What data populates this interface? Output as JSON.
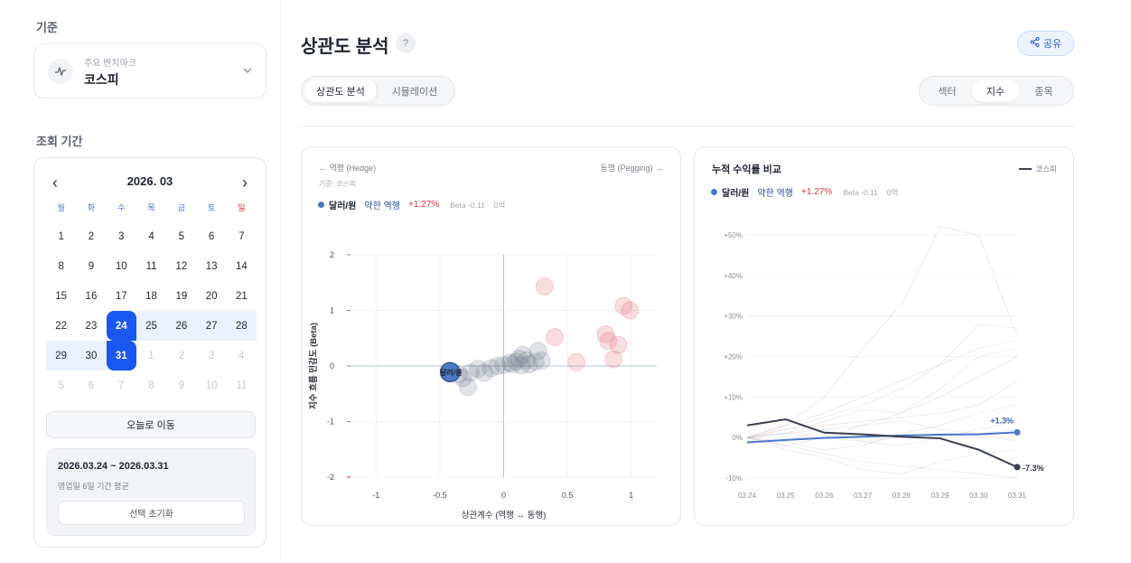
{
  "sidebar": {
    "benchmark_section": "기준",
    "benchmark": {
      "sub": "주요 벤치마크",
      "value": "코스피"
    },
    "period_section": "조회 기간",
    "calendar": {
      "month": "2026. 03",
      "dow": [
        "월",
        "화",
        "수",
        "목",
        "금",
        "토",
        "일"
      ],
      "weeks": [
        [
          "1",
          "2",
          "3",
          "4",
          "5",
          "6",
          "7"
        ],
        [
          "8",
          "9",
          "10",
          "11",
          "12",
          "13",
          "14"
        ],
        [
          "15",
          "16",
          "17",
          "18",
          "19",
          "20",
          "21"
        ],
        [
          "22",
          "23",
          "24",
          "25",
          "26",
          "27",
          "28"
        ],
        [
          "29",
          "30",
          "31",
          "1",
          "2",
          "3",
          "4"
        ],
        [
          "5",
          "6",
          "7",
          "8",
          "9",
          "10",
          "11"
        ]
      ],
      "today_button": "오늘로 이동"
    },
    "range": {
      "text": "2026.03.24 ~ 2026.03.31",
      "sub": "영업일 6일 기간 평균",
      "reset": "선택 초기화"
    }
  },
  "header": {
    "title": "상관도 분석",
    "help": "?",
    "share": "공유"
  },
  "tabs": {
    "left": [
      "상관도 분석",
      "시뮬레이션"
    ],
    "right": [
      "섹터",
      "지수",
      "종목"
    ]
  },
  "scatter_card": {
    "hedge": "← 역행 (Hedge)",
    "peg": "동행 (Pegging) →",
    "basis": "기준: 코스피",
    "item": {
      "name": "달러/원",
      "tag": "약한 역행",
      "ret": "+1.27%",
      "beta": "Beta -0.11",
      "size": "0억"
    },
    "point_label": "달러/원"
  },
  "line_card": {
    "title": "누적 수익률 비교",
    "legend": "코스피",
    "item": {
      "name": "달러/원",
      "tag": "약한 역행",
      "ret": "+1.27%",
      "beta": "Beta -0.11",
      "size": "0억"
    },
    "end_labels": {
      "series": "+1.3%",
      "bench": "-7.3%"
    }
  },
  "colors": {
    "accent": "#1a56f0",
    "series": "#4b78c9",
    "bench": "#3a3f4f",
    "up": "#e0303b"
  },
  "chart_data": [
    {
      "type": "scatter",
      "xlabel": "상관계수 (역행 ↔ 동행)",
      "ylabel": "지수 흐름 민감도 (Beta)",
      "xlim": [
        -1.2,
        1.2
      ],
      "ylim": [
        -2,
        2
      ],
      "xticks": [
        "-1",
        "-0.5",
        "0",
        "0.5",
        "1"
      ],
      "yticks": [
        "2",
        "1",
        "0",
        "-1",
        "-2"
      ],
      "highlight": {
        "name": "달러/원",
        "x": -0.42,
        "y": -0.11
      },
      "points": [
        [
          -0.4,
          -0.12
        ],
        [
          -0.35,
          -0.15
        ],
        [
          -0.32,
          -0.22
        ],
        [
          -0.28,
          -0.38
        ],
        [
          -0.26,
          -0.12
        ],
        [
          -0.2,
          -0.05
        ],
        [
          -0.15,
          -0.12
        ],
        [
          -0.1,
          -0.04
        ],
        [
          -0.05,
          0.0
        ],
        [
          0.0,
          0.02
        ],
        [
          0.05,
          0.06
        ],
        [
          0.1,
          0.08
        ],
        [
          0.12,
          0.13
        ],
        [
          0.15,
          0.2
        ],
        [
          0.18,
          0.1
        ],
        [
          0.25,
          0.08
        ],
        [
          0.27,
          0.27
        ],
        [
          0.3,
          0.1
        ],
        [
          0.32,
          1.43
        ],
        [
          0.4,
          0.52
        ],
        [
          0.57,
          0.07
        ],
        [
          0.8,
          0.57
        ],
        [
          0.82,
          0.45
        ],
        [
          0.86,
          0.12
        ],
        [
          0.9,
          0.38
        ],
        [
          0.94,
          1.08
        ],
        [
          0.99,
          1.0
        ],
        [
          0.2,
          0.03
        ],
        [
          0.07,
          0.03
        ],
        [
          0.14,
          0.01
        ]
      ]
    },
    {
      "type": "line",
      "categories": [
        "03.24",
        "03.25",
        "03.26",
        "03.27",
        "03.28",
        "03.29",
        "03.30",
        "03.31"
      ],
      "ylim": [
        -10,
        50
      ],
      "yticks": [
        "+50%",
        "+40%",
        "+30%",
        "+20%",
        "+10%",
        "0%",
        "-10%"
      ],
      "series": [
        {
          "name": "달러/원",
          "values": [
            -1.2,
            -0.6,
            -0.1,
            0.2,
            0.5,
            0.7,
            0.8,
            1.3
          ]
        },
        {
          "name": "코스피",
          "values": [
            3.0,
            4.5,
            1.2,
            0.8,
            0.2,
            -0.2,
            -3.0,
            -7.3
          ]
        }
      ],
      "background_series": [
        [
          0,
          3,
          10,
          22,
          33,
          52,
          50,
          25
        ],
        [
          0,
          -3,
          -5,
          -8,
          -9,
          -6,
          -4,
          -3
        ],
        [
          0,
          2,
          5,
          8,
          12,
          18,
          28,
          27
        ],
        [
          0,
          -2,
          0,
          3,
          6,
          10,
          15,
          20
        ],
        [
          0,
          1,
          4,
          7,
          6,
          12,
          20,
          22
        ],
        [
          0,
          -1,
          -3,
          -2,
          1,
          3,
          6,
          8
        ],
        [
          0,
          2,
          3,
          4,
          5,
          6,
          8,
          14
        ],
        [
          0,
          1,
          2,
          -1,
          -2,
          0,
          2,
          4
        ],
        [
          0,
          -2,
          -4,
          -6,
          -7,
          -8,
          -9,
          -10
        ],
        [
          0,
          3,
          6,
          10,
          14,
          18,
          22,
          24
        ],
        [
          0,
          1,
          0,
          -1,
          0,
          1,
          1,
          2
        ],
        [
          0,
          -1,
          2,
          3,
          4,
          2,
          1,
          -1
        ]
      ]
    }
  ]
}
